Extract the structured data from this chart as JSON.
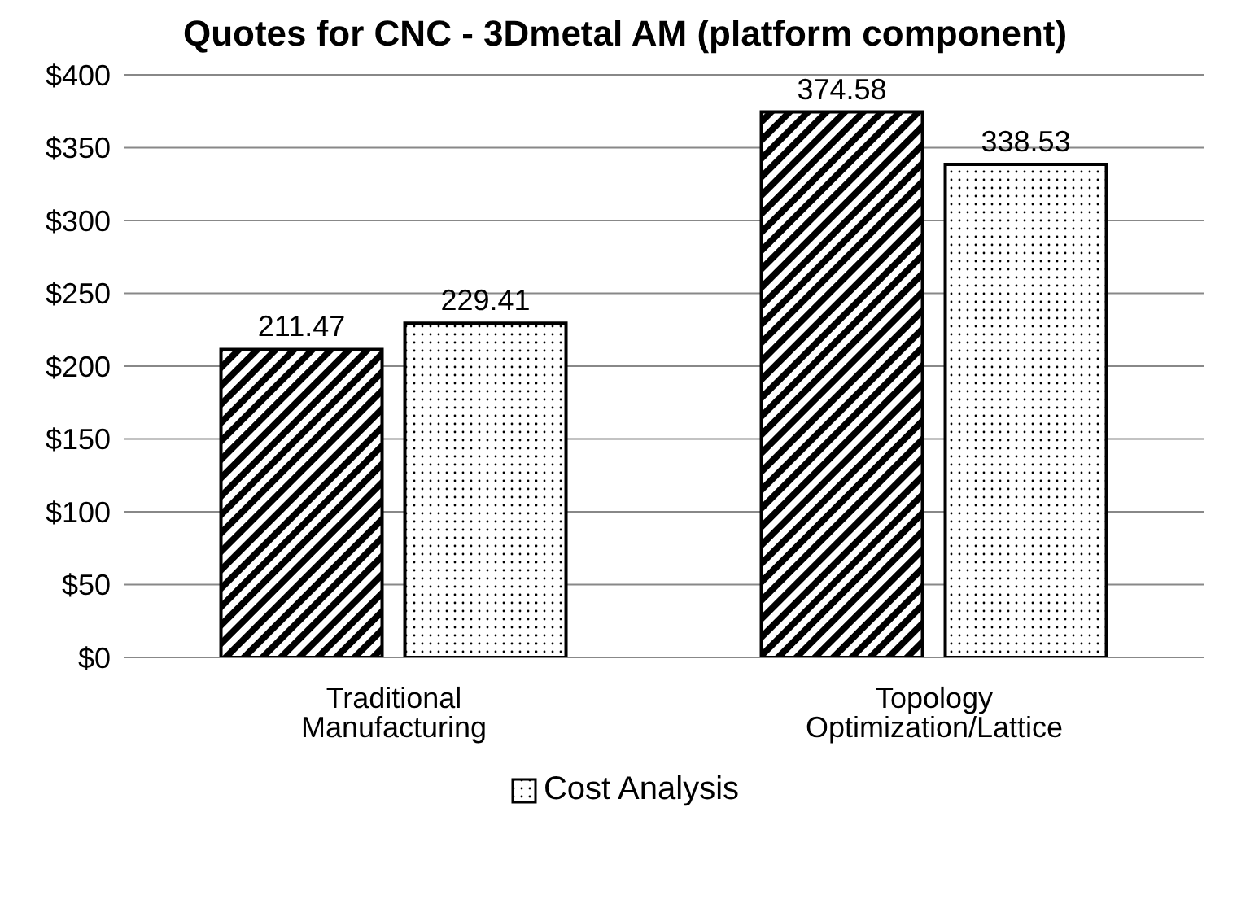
{
  "chart_data": {
    "type": "bar",
    "title": "Quotes for CNC - 3Dmetal AM (platform component)",
    "categories": [
      "Traditional Manufacturing",
      "Topology Optimization/Lattice"
    ],
    "series": [
      {
        "color": "#000000",
        "values": [
          211.47,
          374.58
        ]
      },
      {
        "name": "Cost Analysis",
        "color": "#000000",
        "values": [
          229.41,
          338.53
        ]
      }
    ],
    "ylim": [
      0,
      400
    ],
    "yticks": [
      {
        "value": 0,
        "label": "$0"
      },
      {
        "value": 50,
        "label": "$50"
      },
      {
        "value": 100,
        "label": "$100"
      },
      {
        "value": 150,
        "label": "$150"
      },
      {
        "value": 200,
        "label": "$200"
      },
      {
        "value": 250,
        "label": "$250"
      },
      {
        "value": 300,
        "label": "$300"
      },
      {
        "value": 350,
        "label": "$350"
      },
      {
        "value": 400,
        "label": "$400"
      }
    ],
    "grid": "y",
    "legend": "bottom",
    "data_labels": true
  }
}
